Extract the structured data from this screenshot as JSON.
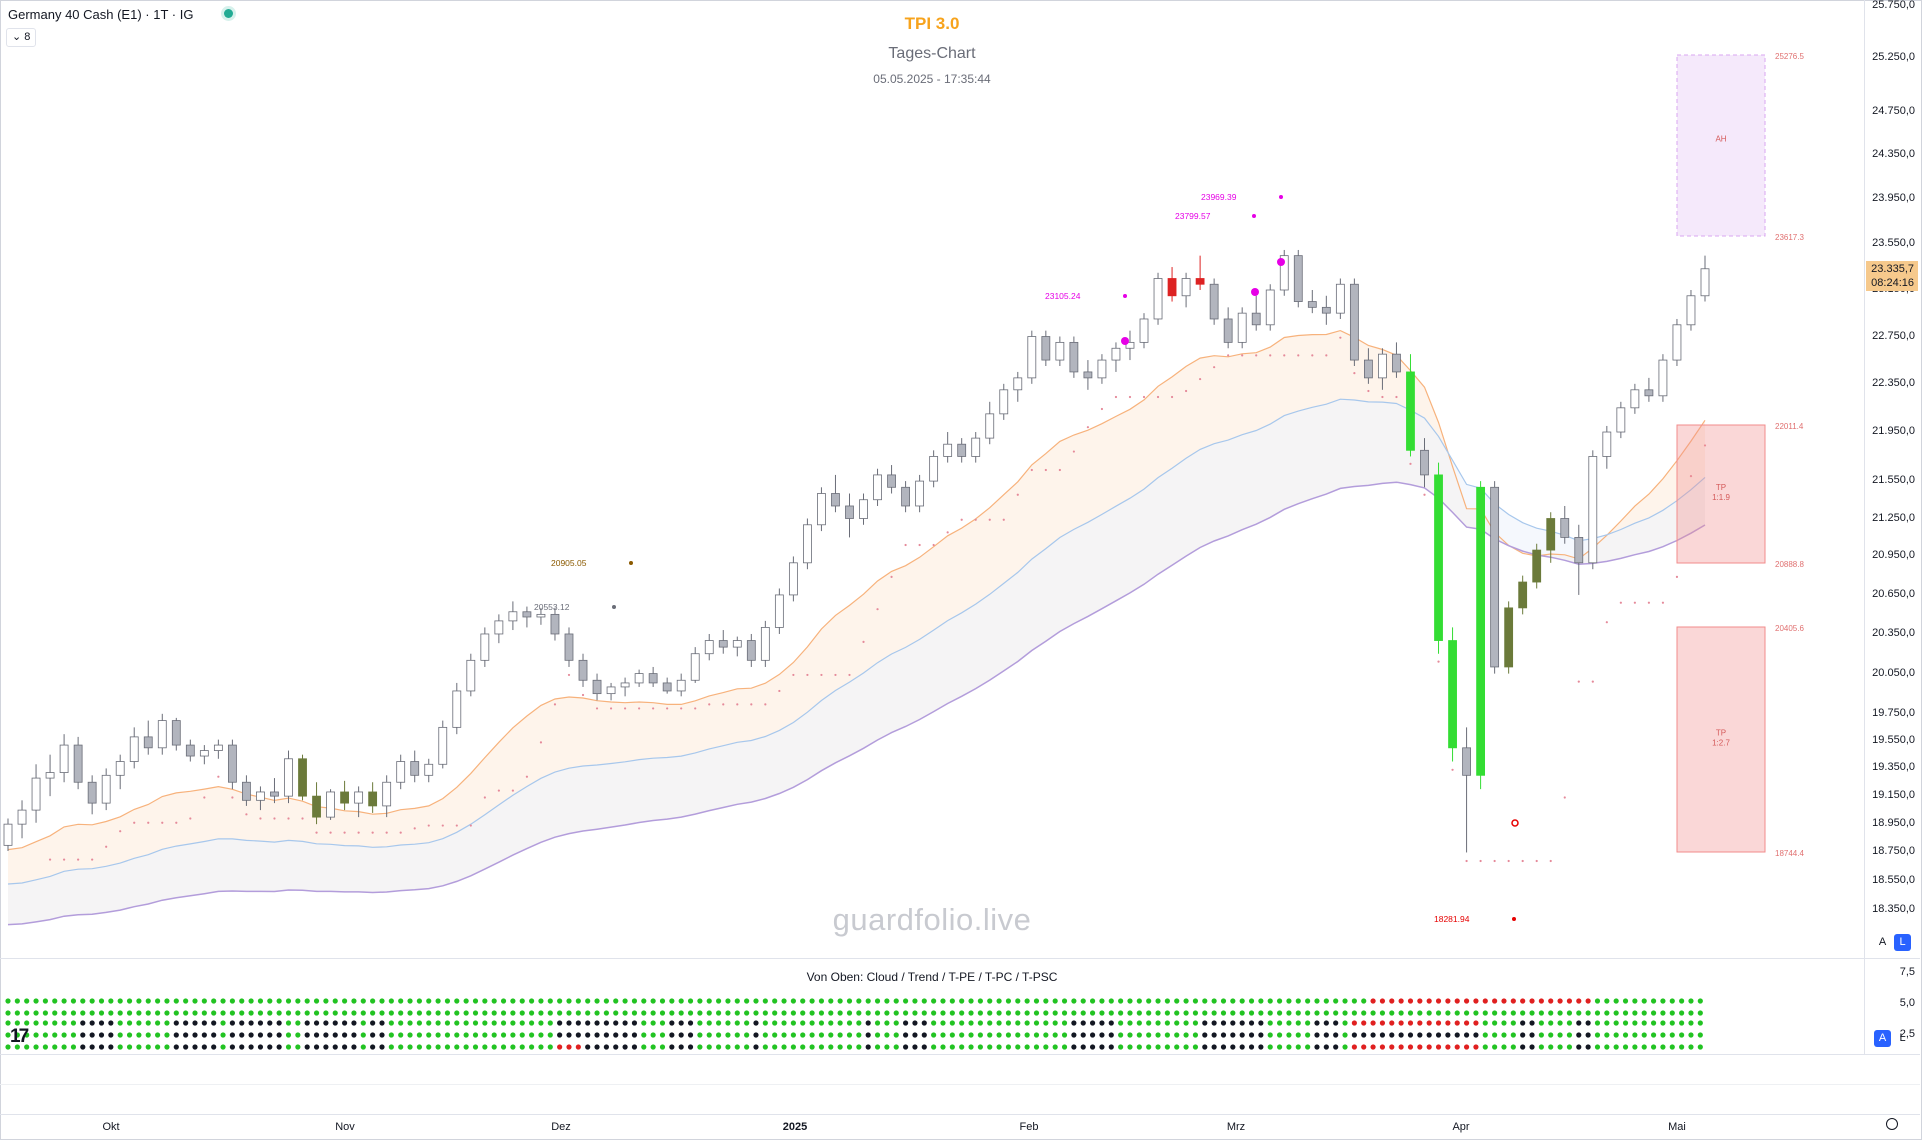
{
  "header": {
    "symbol": "Germany 40 Cash (E1) · 1T · IG",
    "collapse_label": "⌄ 8",
    "status_color": "#22ab94"
  },
  "chart_title": "TPI 3.0",
  "chart_subtitle": "Tages-Chart",
  "chart_datetime": "05.05.2025 - 17:35:44",
  "watermark": "guardfolio.live",
  "current_price": {
    "value": "23.335,7",
    "countdown": "08:24:16"
  },
  "price_axis_ticks": [
    "25.750,0",
    "25.250,0",
    "24.750,0",
    "24.350,0",
    "23.950,0",
    "23.550,0",
    "23.150,0",
    "22.750,0",
    "22.350,0",
    "21.950,0",
    "21.550,0",
    "21.250,0",
    "20.950,0",
    "20.650,0",
    "20.350,0",
    "20.050,0",
    "19.750,0",
    "19.550,0",
    "19.350,0",
    "19.150,0",
    "18.950,0",
    "18.750,0",
    "18.550,0",
    "18.350,0"
  ],
  "indicator_axis_ticks": [
    "7,5",
    "5,0",
    "2,5"
  ],
  "indicator_title": "Von Oben: Cloud / Trend / T-PE / T-PC / T-PSC",
  "scale_buttons": {
    "auto": "A",
    "log": "L"
  },
  "time_axis_labels": [
    "Okt",
    "Nov",
    "Dez",
    "2025",
    "Feb",
    "Mrz",
    "Apr",
    "Mai"
  ],
  "annotations": [
    {
      "text": "23969.39",
      "color": "#e600e6"
    },
    {
      "text": "23799.57",
      "color": "#e600e6"
    },
    {
      "text": "23105.24",
      "color": "#e600e6"
    },
    {
      "text": "20905.05",
      "color": "#8b5a00"
    },
    {
      "text": "20553.12",
      "color": "#6a6d78"
    },
    {
      "text": "18281.94",
      "color": "#e60000"
    }
  ],
  "zones": [
    {
      "label": "AH",
      "top_label": "25276.5",
      "bottom_label": "23617.3",
      "color": "#d9a6f0"
    },
    {
      "label": "TP\n1:1.9",
      "top_label": "22011.4",
      "bottom_label": "20888.8",
      "color": "#f28b8b"
    },
    {
      "label": "TP\n1:2.7",
      "top_label": "20405.6",
      "bottom_label": "18744.4",
      "color": "#f28b8b"
    }
  ],
  "colors": {
    "bull_candle": "#ffffff",
    "bear_candle": "#b2b5be",
    "green_bar": "#33dd33",
    "red_bar": "#dd2222",
    "brown_bar": "#b05a30",
    "olive_bar": "#6b7a3a",
    "ema_fast": "#f7b27c",
    "ema_mid": "#a7c7ec",
    "ema_slow": "#b39ddb"
  },
  "chart_data": {
    "type": "candlestick",
    "y_axis_range": [
      18000,
      25900
    ],
    "series": [
      {
        "name": "Germany 40 Cash (E1)",
        "values": [
          [
            18800,
            18990,
            18760,
            18950
          ],
          [
            18950,
            19120,
            18850,
            19050
          ],
          [
            19050,
            19380,
            18960,
            19280
          ],
          [
            19280,
            19450,
            19150,
            19320
          ],
          [
            19320,
            19600,
            19250,
            19520
          ],
          [
            19520,
            19580,
            19200,
            19250
          ],
          [
            19250,
            19300,
            19020,
            19100
          ],
          [
            19100,
            19350,
            19050,
            19300
          ],
          [
            19300,
            19450,
            19200,
            19400
          ],
          [
            19400,
            19650,
            19350,
            19580
          ],
          [
            19580,
            19700,
            19450,
            19500
          ],
          [
            19500,
            19750,
            19450,
            19700
          ],
          [
            19700,
            19720,
            19480,
            19520
          ],
          [
            19520,
            19560,
            19400,
            19440
          ],
          [
            19440,
            19520,
            19380,
            19480
          ],
          [
            19480,
            19560,
            19420,
            19520
          ],
          [
            19520,
            19560,
            19200,
            19250
          ],
          [
            19250,
            19300,
            19080,
            19120
          ],
          [
            19120,
            19220,
            19050,
            19180
          ],
          [
            19180,
            19280,
            19100,
            19150
          ],
          [
            19150,
            19480,
            19100,
            19420
          ],
          [
            19420,
            19450,
            19120,
            19150
          ],
          [
            19150,
            19250,
            18950,
            19000
          ],
          [
            19000,
            19200,
            18980,
            19180
          ],
          [
            19180,
            19260,
            19050,
            19100
          ],
          [
            19100,
            19220,
            19000,
            19180
          ],
          [
            19180,
            19250,
            19030,
            19080
          ],
          [
            19080,
            19300,
            19000,
            19250
          ],
          [
            19250,
            19450,
            19200,
            19400
          ],
          [
            19400,
            19480,
            19250,
            19300
          ],
          [
            19300,
            19420,
            19250,
            19380
          ],
          [
            19380,
            19700,
            19350,
            19650
          ],
          [
            19650,
            19980,
            19600,
            19920
          ],
          [
            19920,
            20200,
            19880,
            20150
          ],
          [
            20150,
            20400,
            20100,
            20350
          ],
          [
            20350,
            20500,
            20280,
            20450
          ],
          [
            20450,
            20600,
            20380,
            20520
          ],
          [
            20520,
            20560,
            20400,
            20480
          ],
          [
            20480,
            20550,
            20420,
            20500
          ],
          [
            20500,
            20550,
            20300,
            20350
          ],
          [
            20350,
            20400,
            20100,
            20150
          ],
          [
            20150,
            20200,
            19950,
            20000
          ],
          [
            20000,
            20050,
            19850,
            19900
          ],
          [
            19900,
            19980,
            19850,
            19950
          ],
          [
            19950,
            20020,
            19880,
            19980
          ],
          [
            19980,
            20080,
            19950,
            20050
          ],
          [
            20050,
            20100,
            19950,
            19980
          ],
          [
            19980,
            20020,
            19900,
            19920
          ],
          [
            19920,
            20050,
            19880,
            20000
          ],
          [
            20000,
            20250,
            19980,
            20200
          ],
          [
            20200,
            20350,
            20150,
            20300
          ],
          [
            20300,
            20380,
            20200,
            20250
          ],
          [
            20250,
            20330,
            20180,
            20300
          ],
          [
            20300,
            20350,
            20100,
            20150
          ],
          [
            20150,
            20450,
            20100,
            20400
          ],
          [
            20400,
            20700,
            20350,
            20650
          ],
          [
            20650,
            20950,
            20600,
            20900
          ],
          [
            20900,
            21250,
            20850,
            21200
          ],
          [
            21200,
            21500,
            21150,
            21450
          ],
          [
            21450,
            21600,
            21300,
            21350
          ],
          [
            21350,
            21450,
            21100,
            21250
          ],
          [
            21250,
            21450,
            21200,
            21400
          ],
          [
            21400,
            21650,
            21350,
            21600
          ],
          [
            21600,
            21680,
            21450,
            21500
          ],
          [
            21500,
            21550,
            21300,
            21350
          ],
          [
            21350,
            21600,
            21300,
            21550
          ],
          [
            21550,
            21800,
            21500,
            21750
          ],
          [
            21750,
            21950,
            21700,
            21850
          ],
          [
            21850,
            21900,
            21700,
            21750
          ],
          [
            21750,
            21950,
            21700,
            21900
          ],
          [
            21900,
            22200,
            21850,
            22100
          ],
          [
            22100,
            22350,
            22050,
            22300
          ],
          [
            22300,
            22450,
            22200,
            22400
          ],
          [
            22400,
            22800,
            22350,
            22750
          ],
          [
            22750,
            22800,
            22500,
            22550
          ],
          [
            22550,
            22750,
            22500,
            22700
          ],
          [
            22700,
            22750,
            22400,
            22450
          ],
          [
            22450,
            22550,
            22300,
            22400
          ],
          [
            22400,
            22600,
            22350,
            22550
          ],
          [
            22550,
            22700,
            22450,
            22650
          ],
          [
            22650,
            22800,
            22550,
            22700
          ],
          [
            22700,
            22950,
            22650,
            22900
          ],
          [
            22900,
            23300,
            22850,
            23250
          ],
          [
            23250,
            23350,
            23050,
            23100
          ],
          [
            23100,
            23300,
            23000,
            23250
          ],
          [
            23250,
            23450,
            23150,
            23200
          ],
          [
            23200,
            23250,
            22850,
            22900
          ],
          [
            22900,
            23000,
            22650,
            22700
          ],
          [
            22700,
            23000,
            22650,
            22950
          ],
          [
            22950,
            23100,
            22800,
            22850
          ],
          [
            22850,
            23200,
            22800,
            23150
          ],
          [
            23150,
            23500,
            23100,
            23450
          ],
          [
            23450,
            23500,
            23000,
            23050
          ],
          [
            23050,
            23150,
            22950,
            23000
          ],
          [
            23000,
            23100,
            22850,
            22950
          ],
          [
            22950,
            23250,
            22900,
            23200
          ],
          [
            23200,
            23250,
            22500,
            22550
          ],
          [
            22550,
            22650,
            22350,
            22400
          ],
          [
            22400,
            22650,
            22300,
            22600
          ],
          [
            22600,
            22700,
            22400,
            22450
          ],
          [
            22450,
            22600,
            21750,
            21800
          ],
          [
            21800,
            21900,
            21500,
            21600
          ],
          [
            21600,
            21700,
            20200,
            20300
          ],
          [
            20300,
            20400,
            19400,
            19500
          ],
          [
            19500,
            19650,
            18750,
            19300
          ],
          [
            19300,
            21550,
            19200,
            21500
          ],
          [
            21500,
            21550,
            20050,
            20100
          ],
          [
            20100,
            20600,
            20050,
            20550
          ],
          [
            20550,
            20800,
            20500,
            20750
          ],
          [
            20750,
            21050,
            20700,
            21000
          ],
          [
            21000,
            21300,
            20900,
            21250
          ],
          [
            21250,
            21350,
            21050,
            21100
          ],
          [
            21100,
            21200,
            20650,
            20900
          ],
          [
            20900,
            21800,
            20850,
            21750
          ],
          [
            21750,
            22000,
            21650,
            21950
          ],
          [
            21950,
            22200,
            21900,
            22150
          ],
          [
            22150,
            22350,
            22100,
            22300
          ],
          [
            22300,
            22400,
            22200,
            22250
          ],
          [
            22250,
            22600,
            22200,
            22550
          ],
          [
            22550,
            22900,
            22500,
            22850
          ],
          [
            22850,
            23150,
            22800,
            23100
          ],
          [
            23100,
            23450,
            23050,
            23335
          ]
        ]
      }
    ]
  }
}
